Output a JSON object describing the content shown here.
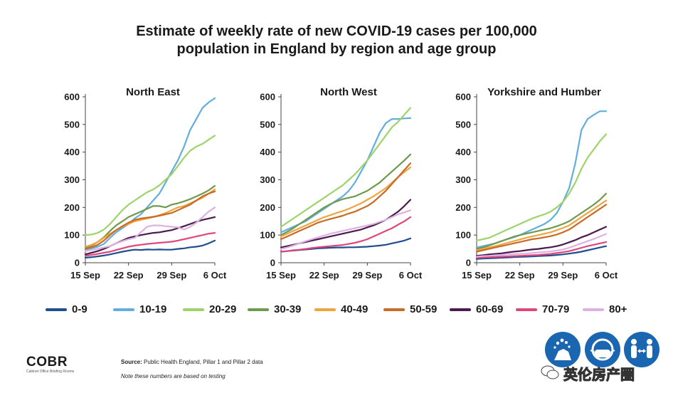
{
  "title_line1": "Estimate of weekly rate of new COVID-19 cases per 100,000",
  "title_line2": "population in England by region and age group",
  "x_ticks": [
    "15 Sep",
    "22 Sep",
    "29 Sep",
    "6 Oct"
  ],
  "y_ticks": [
    "0",
    "100",
    "200",
    "300",
    "400",
    "500",
    "600"
  ],
  "colors": {
    "0-9": "#1f4e8c",
    "10-19": "#62aedc",
    "20-29": "#9ed36a",
    "30-39": "#6e9a4e",
    "40-49": "#eea43f",
    "50-59": "#c96a26",
    "60-69": "#4a1a4e",
    "70-79": "#e0467c",
    "80+": "#dcb2e0"
  },
  "legend": [
    "0-9",
    "10-19",
    "20-29",
    "30-39",
    "40-49",
    "50-59",
    "60-69",
    "70-79",
    "80+"
  ],
  "chart_data": [
    {
      "type": "line",
      "title": "North East",
      "x": [
        "15 Sep",
        "16 Sep",
        "17 Sep",
        "18 Sep",
        "19 Sep",
        "20 Sep",
        "21 Sep",
        "22 Sep",
        "23 Sep",
        "24 Sep",
        "25 Sep",
        "26 Sep",
        "27 Sep",
        "28 Sep",
        "29 Sep",
        "30 Sep",
        "1 Oct",
        "2 Oct",
        "3 Oct",
        "4 Oct",
        "5 Oct",
        "6 Oct"
      ],
      "ylim": [
        0,
        600
      ],
      "series": [
        {
          "name": "0-9",
          "values": [
            18,
            20,
            23,
            26,
            30,
            35,
            40,
            44,
            47,
            46,
            48,
            47,
            48,
            47,
            47,
            50,
            52,
            56,
            58,
            62,
            70,
            80
          ]
        },
        {
          "name": "10-19",
          "values": [
            48,
            52,
            58,
            68,
            90,
            110,
            125,
            140,
            160,
            175,
            200,
            225,
            250,
            290,
            330,
            370,
            420,
            480,
            520,
            560,
            580,
            595
          ]
        },
        {
          "name": "20-29",
          "values": [
            100,
            102,
            108,
            120,
            140,
            165,
            190,
            210,
            225,
            240,
            255,
            265,
            280,
            300,
            320,
            350,
            380,
            405,
            420,
            430,
            445,
            460
          ]
        },
        {
          "name": "30-39",
          "values": [
            55,
            62,
            75,
            92,
            115,
            135,
            150,
            165,
            175,
            185,
            195,
            205,
            205,
            200,
            210,
            215,
            222,
            230,
            240,
            250,
            262,
            278
          ]
        },
        {
          "name": "40-49",
          "values": [
            58,
            65,
            75,
            90,
            105,
            118,
            130,
            140,
            150,
            155,
            160,
            165,
            172,
            180,
            190,
            200,
            205,
            215,
            225,
            235,
            250,
            265
          ]
        },
        {
          "name": "50-59",
          "values": [
            50,
            56,
            65,
            80,
            100,
            118,
            132,
            145,
            155,
            160,
            163,
            166,
            170,
            175,
            180,
            190,
            200,
            210,
            225,
            240,
            250,
            258
          ]
        },
        {
          "name": "60-69",
          "values": [
            30,
            36,
            42,
            50,
            60,
            70,
            80,
            90,
            95,
            100,
            104,
            108,
            110,
            114,
            118,
            125,
            132,
            140,
            148,
            155,
            160,
            165
          ]
        },
        {
          "name": "70-79",
          "values": [
            25,
            28,
            32,
            36,
            40,
            46,
            52,
            58,
            62,
            65,
            68,
            70,
            72,
            74,
            76,
            80,
            85,
            90,
            95,
            100,
            105,
            108
          ]
        },
        {
          "name": "80+",
          "values": [
            42,
            46,
            50,
            55,
            60,
            70,
            78,
            85,
            90,
            110,
            130,
            135,
            135,
            132,
            130,
            128,
            120,
            130,
            145,
            165,
            185,
            200
          ]
        }
      ]
    },
    {
      "type": "line",
      "title": "North West",
      "x": [
        "15 Sep",
        "16 Sep",
        "17 Sep",
        "18 Sep",
        "19 Sep",
        "20 Sep",
        "21 Sep",
        "22 Sep",
        "23 Sep",
        "24 Sep",
        "25 Sep",
        "26 Sep",
        "27 Sep",
        "28 Sep",
        "29 Sep",
        "30 Sep",
        "1 Oct",
        "2 Oct",
        "3 Oct",
        "4 Oct",
        "5 Oct",
        "6 Oct"
      ],
      "ylim": [
        0,
        600
      ],
      "series": [
        {
          "name": "0-9",
          "values": [
            40,
            42,
            44,
            46,
            48,
            50,
            52,
            53,
            54,
            55,
            55,
            56,
            56,
            57,
            58,
            60,
            62,
            65,
            70,
            75,
            80,
            88
          ]
        },
        {
          "name": "10-19",
          "values": [
            110,
            120,
            130,
            140,
            150,
            165,
            180,
            195,
            210,
            225,
            240,
            260,
            290,
            330,
            370,
            420,
            470,
            505,
            520,
            520,
            522,
            523
          ]
        },
        {
          "name": "20-29",
          "values": [
            130,
            145,
            160,
            175,
            190,
            205,
            220,
            235,
            250,
            265,
            280,
            300,
            320,
            345,
            370,
            400,
            430,
            460,
            490,
            510,
            535,
            560
          ]
        },
        {
          "name": "30-39",
          "values": [
            100,
            112,
            125,
            140,
            155,
            170,
            185,
            200,
            212,
            222,
            230,
            235,
            240,
            250,
            260,
            275,
            290,
            310,
            330,
            350,
            370,
            392
          ]
        },
        {
          "name": "40-49",
          "values": [
            95,
            105,
            115,
            125,
            135,
            145,
            155,
            165,
            172,
            180,
            187,
            195,
            205,
            215,
            228,
            240,
            255,
            270,
            290,
            310,
            328,
            345
          ]
        },
        {
          "name": "50-59",
          "values": [
            85,
            95,
            105,
            115,
            125,
            135,
            145,
            152,
            158,
            164,
            170,
            178,
            185,
            195,
            205,
            220,
            240,
            260,
            285,
            310,
            335,
            360
          ]
        },
        {
          "name": "60-69",
          "values": [
            55,
            60,
            65,
            70,
            75,
            80,
            85,
            90,
            95,
            100,
            105,
            110,
            115,
            120,
            128,
            135,
            145,
            155,
            170,
            185,
            205,
            228
          ]
        },
        {
          "name": "70-79",
          "values": [
            40,
            42,
            45,
            47,
            50,
            53,
            56,
            58,
            60,
            62,
            64,
            68,
            72,
            78,
            85,
            95,
            105,
            115,
            125,
            138,
            150,
            165
          ]
        },
        {
          "name": "80+",
          "values": [
            50,
            55,
            62,
            70,
            78,
            85,
            92,
            98,
            105,
            110,
            115,
            120,
            125,
            130,
            135,
            140,
            148,
            155,
            165,
            175,
            182,
            190
          ]
        }
      ]
    },
    {
      "type": "line",
      "title": "Yorkshire and Humber",
      "x": [
        "15 Sep",
        "16 Sep",
        "17 Sep",
        "18 Sep",
        "19 Sep",
        "20 Sep",
        "21 Sep",
        "22 Sep",
        "23 Sep",
        "24 Sep",
        "25 Sep",
        "26 Sep",
        "27 Sep",
        "28 Sep",
        "29 Sep",
        "30 Sep",
        "1 Oct",
        "2 Oct",
        "3 Oct",
        "4 Oct",
        "5 Oct",
        "6 Oct"
      ],
      "ylim": [
        0,
        600
      ],
      "series": [
        {
          "name": "0-9",
          "values": [
            14,
            15,
            16,
            17,
            18,
            19,
            20,
            21,
            22,
            23,
            24,
            25,
            26,
            28,
            30,
            33,
            36,
            40,
            45,
            50,
            55,
            60
          ]
        },
        {
          "name": "10-19",
          "values": [
            55,
            60,
            65,
            70,
            78,
            85,
            92,
            100,
            110,
            120,
            130,
            140,
            155,
            180,
            220,
            270,
            360,
            480,
            520,
            535,
            548,
            548
          ]
        },
        {
          "name": "20-29",
          "values": [
            80,
            85,
            90,
            100,
            110,
            120,
            130,
            140,
            150,
            160,
            168,
            175,
            185,
            200,
            220,
            250,
            290,
            340,
            380,
            410,
            440,
            465
          ]
        },
        {
          "name": "30-39",
          "values": [
            50,
            55,
            62,
            70,
            78,
            86,
            94,
            100,
            105,
            110,
            115,
            120,
            125,
            132,
            140,
            150,
            165,
            180,
            195,
            210,
            228,
            250
          ]
        },
        {
          "name": "40-49",
          "values": [
            45,
            50,
            55,
            60,
            66,
            72,
            78,
            84,
            90,
            95,
            100,
            105,
            110,
            118,
            126,
            135,
            150,
            165,
            180,
            195,
            210,
            225
          ]
        },
        {
          "name": "50-59",
          "values": [
            40,
            45,
            50,
            55,
            60,
            65,
            70,
            75,
            80,
            85,
            88,
            92,
            96,
            102,
            110,
            120,
            135,
            150,
            165,
            180,
            195,
            210
          ]
        },
        {
          "name": "60-69",
          "values": [
            25,
            27,
            30,
            32,
            34,
            37,
            40,
            42,
            45,
            48,
            50,
            53,
            56,
            60,
            66,
            74,
            82,
            92,
            100,
            110,
            120,
            130
          ]
        },
        {
          "name": "70-79",
          "values": [
            18,
            19,
            20,
            21,
            22,
            23,
            24,
            25,
            26,
            27,
            28,
            30,
            32,
            35,
            38,
            42,
            48,
            54,
            60,
            65,
            70,
            75
          ]
        },
        {
          "name": "80+",
          "values": [
            22,
            24,
            25,
            27,
            28,
            30,
            31,
            32,
            33,
            35,
            37,
            39,
            41,
            44,
            48,
            54,
            62,
            70,
            78,
            86,
            95,
            104
          ]
        }
      ]
    }
  ],
  "footer": {
    "brand": "COBR",
    "brand_sub": "Cabinet Office Briefing Rooms",
    "source_label": "Source:",
    "source_text": "Public Health England, Pillar 1 and Pillar 2 data",
    "note": "Note these numbers are based on testing",
    "watermark": "英伦房产圈"
  }
}
